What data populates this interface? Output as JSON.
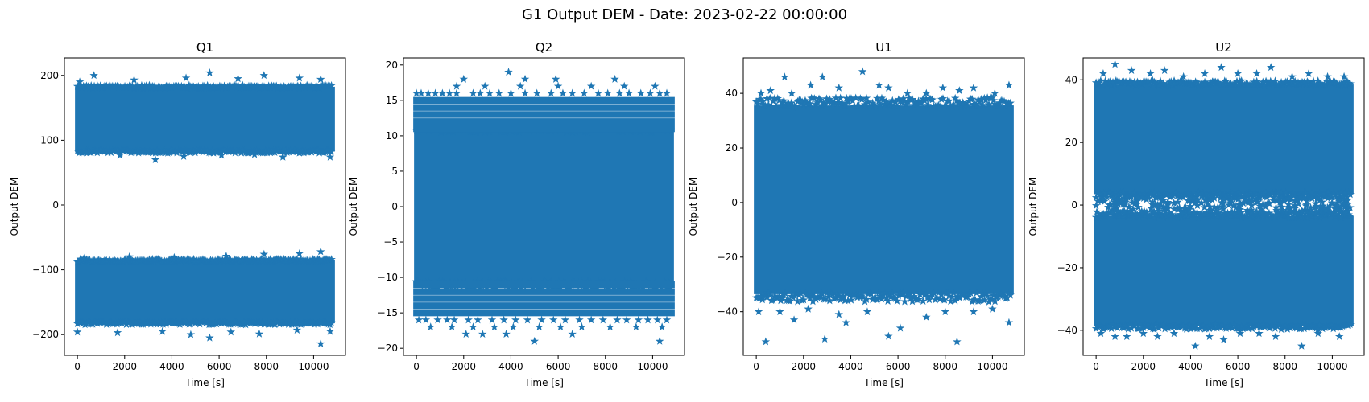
{
  "figure": {
    "suptitle": "G1 Output DEM - Date: 2023-02-22 00:00:00"
  },
  "style": {
    "series_color": "#1f77b4",
    "marker": "star",
    "axis_color": "#000000"
  },
  "chart_data": [
    {
      "type": "scatter",
      "title": "Q1",
      "xlabel": "Time [s]",
      "ylabel": "Output DEM",
      "xlim": [
        -550,
        11350
      ],
      "ylim": [
        -232,
        227
      ],
      "xticks": [
        0,
        2000,
        4000,
        6000,
        8000,
        10000
      ],
      "yticks": [
        -200,
        -100,
        0,
        100,
        200
      ],
      "x_range": [
        0,
        10800
      ],
      "grid": false,
      "legend": "none",
      "bands": [
        {
          "y": [
            85,
            180
          ],
          "outliers": [
            [
              100,
              190
            ],
            [
              700,
              200
            ],
            [
              2400,
              193
            ],
            [
              4600,
              196
            ],
            [
              5600,
              204
            ],
            [
              6800,
              195
            ],
            [
              7900,
              200
            ],
            [
              9400,
              196
            ],
            [
              10300,
              194
            ],
            [
              400,
              80
            ],
            [
              1800,
              77
            ],
            [
              3300,
              70
            ],
            [
              4500,
              75
            ],
            [
              6100,
              77
            ],
            [
              7500,
              78
            ],
            [
              8700,
              74
            ],
            [
              10700,
              74
            ]
          ]
        },
        {
          "y": [
            -180,
            -88
          ],
          "outliers": [
            [
              300,
              -82
            ],
            [
              2200,
              -80
            ],
            [
              4100,
              -81
            ],
            [
              6300,
              -79
            ],
            [
              7900,
              -76
            ],
            [
              9400,
              -75
            ],
            [
              10300,
              -72
            ],
            [
              0,
              -196
            ],
            [
              1700,
              -197
            ],
            [
              3600,
              -195
            ],
            [
              4800,
              -200
            ],
            [
              5600,
              -205
            ],
            [
              6500,
              -196
            ],
            [
              7700,
              -199
            ],
            [
              9300,
              -193
            ],
            [
              10300,
              -214
            ],
            [
              10700,
              -195
            ]
          ]
        }
      ]
    },
    {
      "type": "scatter",
      "title": "Q2",
      "xlabel": "Time [s]",
      "ylabel": "Output DEM",
      "xlim": [
        -550,
        11350
      ],
      "ylim": [
        -21,
        21
      ],
      "xticks": [
        0,
        2000,
        4000,
        6000,
        8000,
        10000
      ],
      "yticks": [
        -20,
        -15,
        -10,
        -5,
        0,
        5,
        10,
        15,
        20
      ],
      "x_range": [
        0,
        10800
      ],
      "grid": false,
      "legend": "none",
      "quantized_levels": [
        -15,
        -14,
        -13,
        -12,
        -11,
        11,
        12,
        13,
        14,
        15
      ],
      "dense_y": [
        -10.5,
        10.5
      ],
      "sparse_levels": [
        {
          "y": 16,
          "x": [
            0,
            200,
            500,
            800,
            1100,
            1400,
            1700,
            2400,
            2700,
            3100,
            3500,
            4000,
            4600,
            5100,
            5700,
            6200,
            6600,
            7100,
            7700,
            8100,
            8600,
            9000,
            9500,
            9900,
            10300,
            10600
          ]
        },
        {
          "y": -16,
          "x": [
            100,
            400,
            900,
            1300,
            1600,
            2200,
            2600,
            3200,
            3700,
            4200,
            4700,
            5300,
            5800,
            6300,
            6900,
            7400,
            7900,
            8500,
            8900,
            9400,
            9800,
            10200,
            10600
          ]
        },
        {
          "y": 17,
          "x": [
            1700,
            2900,
            4400,
            6000,
            7400,
            8800,
            10100
          ]
        },
        {
          "y": -17,
          "x": [
            600,
            1500,
            2400,
            3300,
            4100,
            5200,
            6100,
            7000,
            8200,
            9300,
            10400
          ]
        }
      ],
      "outliers": [
        [
          2000,
          18
        ],
        [
          3900,
          19
        ],
        [
          4600,
          18
        ],
        [
          5900,
          18
        ],
        [
          8400,
          18
        ],
        [
          2100,
          -18
        ],
        [
          2800,
          -18
        ],
        [
          3800,
          -18
        ],
        [
          5000,
          -19
        ],
        [
          6600,
          -18
        ],
        [
          10300,
          -19
        ]
      ]
    },
    {
      "type": "scatter",
      "title": "U1",
      "xlabel": "Time [s]",
      "ylabel": "Output DEM",
      "xlim": [
        -550,
        11350
      ],
      "ylim": [
        -56,
        53
      ],
      "xticks": [
        0,
        2000,
        4000,
        6000,
        8000,
        10000
      ],
      "yticks": [
        -40,
        -20,
        0,
        20,
        40
      ],
      "x_range": [
        0,
        10800
      ],
      "grid": false,
      "legend": "none",
      "bands": [
        {
          "y": [
            -33,
            35
          ],
          "outliers": [
            [
              200,
              40
            ],
            [
              600,
              41
            ],
            [
              1200,
              46
            ],
            [
              1500,
              40
            ],
            [
              2300,
              43
            ],
            [
              2800,
              46
            ],
            [
              3500,
              42
            ],
            [
              4500,
              48
            ],
            [
              5200,
              43
            ],
            [
              5600,
              42
            ],
            [
              6400,
              40
            ],
            [
              7200,
              40
            ],
            [
              7900,
              42
            ],
            [
              8600,
              41
            ],
            [
              9200,
              42
            ],
            [
              10100,
              40
            ],
            [
              10700,
              43
            ],
            [
              100,
              -40
            ],
            [
              400,
              -51
            ],
            [
              1000,
              -40
            ],
            [
              1600,
              -43
            ],
            [
              2200,
              -39
            ],
            [
              2900,
              -50
            ],
            [
              3500,
              -41
            ],
            [
              3800,
              -44
            ],
            [
              4700,
              -40
            ],
            [
              5600,
              -49
            ],
            [
              6100,
              -46
            ],
            [
              7200,
              -42
            ],
            [
              8000,
              -40
            ],
            [
              8500,
              -51
            ],
            [
              9200,
              -40
            ],
            [
              10000,
              -39
            ],
            [
              10700,
              -44
            ]
          ]
        }
      ]
    },
    {
      "type": "scatter",
      "title": "U2",
      "xlabel": "Time [s]",
      "ylabel": "Output DEM",
      "xlim": [
        -550,
        11350
      ],
      "ylim": [
        -48,
        47
      ],
      "xticks": [
        0,
        2000,
        4000,
        6000,
        8000,
        10000
      ],
      "yticks": [
        -40,
        -20,
        0,
        20,
        40
      ],
      "x_range": [
        0,
        10800
      ],
      "grid": false,
      "legend": "none",
      "bands": [
        {
          "y": [
            4,
            38
          ],
          "outliers": [
            [
              300,
              42
            ],
            [
              800,
              45
            ],
            [
              1500,
              43
            ],
            [
              2300,
              42
            ],
            [
              2900,
              43
            ],
            [
              3700,
              41
            ],
            [
              4600,
              42
            ],
            [
              5300,
              44
            ],
            [
              6000,
              42
            ],
            [
              6800,
              42
            ],
            [
              7400,
              44
            ],
            [
              8300,
              41
            ],
            [
              9000,
              42
            ],
            [
              9800,
              41
            ],
            [
              10500,
              41
            ]
          ]
        },
        {
          "y": [
            -38,
            -4
          ],
          "outliers": [
            [
              200,
              -41
            ],
            [
              800,
              -42
            ],
            [
              1300,
              -42
            ],
            [
              2000,
              -41
            ],
            [
              2600,
              -42
            ],
            [
              3300,
              -41
            ],
            [
              4200,
              -45
            ],
            [
              4800,
              -42
            ],
            [
              5400,
              -43
            ],
            [
              6100,
              -41
            ],
            [
              6900,
              -41
            ],
            [
              7600,
              -42
            ],
            [
              8700,
              -45
            ],
            [
              9400,
              -41
            ],
            [
              10300,
              -42
            ]
          ]
        },
        {
          "y": [
            -2.5,
            2.5
          ],
          "sparse": true
        }
      ]
    }
  ]
}
